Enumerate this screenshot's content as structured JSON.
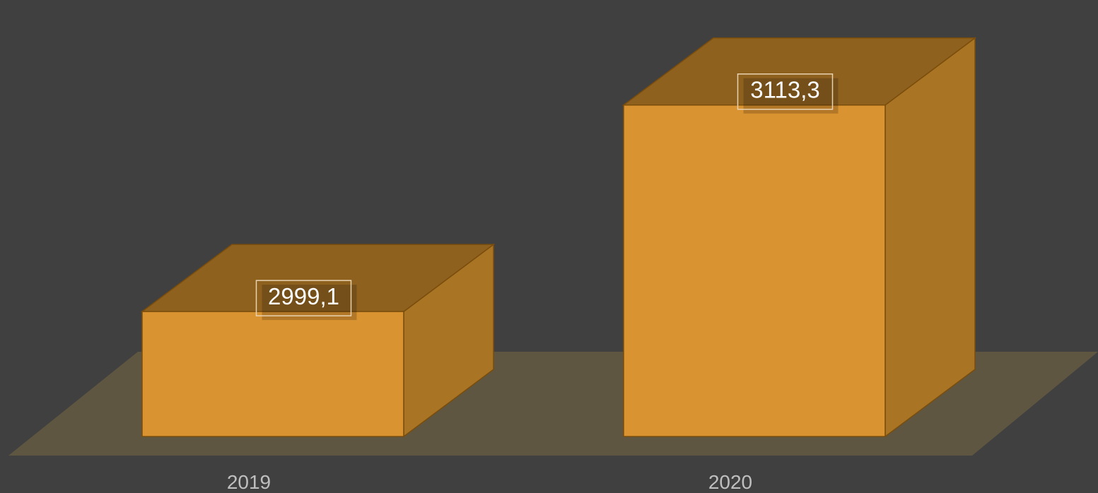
{
  "chart_data": {
    "type": "bar",
    "style": "3d-column",
    "categories": [
      "2019",
      "2020"
    ],
    "values": [
      2999.1,
      3113.3
    ],
    "data_labels": [
      "2999,1",
      "3113,3"
    ],
    "ylim": [
      2930,
      3130
    ],
    "grid": false,
    "legend": "none",
    "title": "",
    "xlabel": "",
    "ylabel": ""
  },
  "colors": {
    "background": "#404040",
    "floor": "#5e5640",
    "bar_front": "#d99330",
    "bar_top": "#8f611f",
    "bar_side": "#a97525",
    "bar_edge": "#7a4d0c",
    "label_text": "#ffffff",
    "tick_text": "#bfbfbf"
  }
}
